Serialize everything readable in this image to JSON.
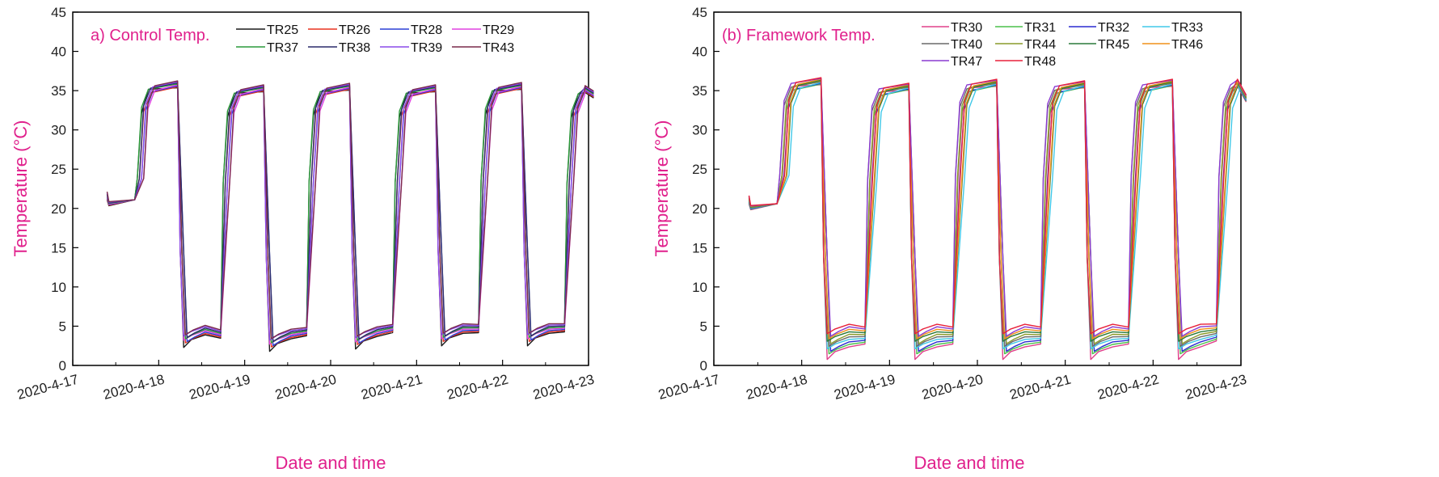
{
  "figure": {
    "accent_color": "#e0208c"
  },
  "chart_data": [
    {
      "type": "line",
      "title": "a) Control Temp.",
      "xlabel": "Date and time",
      "ylabel": "Temperature (°C)",
      "ylim": [
        0,
        45
      ],
      "yticks": [
        "0",
        "5",
        "10",
        "15",
        "20",
        "25",
        "30",
        "35",
        "40",
        "45"
      ],
      "xlim": [
        0,
        6
      ],
      "xticks": [
        "2020-4-17",
        "2020-4-18",
        "2020-4-19",
        "2020-4-20",
        "2020-4-21",
        "2020-4-22",
        "2020-4-23"
      ],
      "legend_position": "top-right",
      "series": [
        {
          "name": "TR25",
          "color": "#1a1a1a"
        },
        {
          "name": "TR26",
          "color": "#e8321e"
        },
        {
          "name": "TR28",
          "color": "#2a3fd6"
        },
        {
          "name": "TR29",
          "color": "#e040e0"
        },
        {
          "name": "TR37",
          "color": "#2a9a3a"
        },
        {
          "name": "TR38",
          "color": "#2a2a6a"
        },
        {
          "name": "TR39",
          "color": "#8a4ae8"
        },
        {
          "name": "TR43",
          "color": "#7a2a4a"
        }
      ],
      "cycles": [
        {
          "heat_start": 0.74,
          "cool_start": 1.24,
          "high": 35.8,
          "low": 4.5
        },
        {
          "heat_start": 1.74,
          "cool_start": 2.24,
          "high": 35.3,
          "low": 4.0
        },
        {
          "heat_start": 2.74,
          "cool_start": 3.24,
          "high": 35.5,
          "low": 4.3
        },
        {
          "heat_start": 3.74,
          "cool_start": 4.24,
          "high": 35.3,
          "low": 4.7
        },
        {
          "heat_start": 4.74,
          "cool_start": 5.24,
          "high": 35.6,
          "low": 4.7
        },
        {
          "heat_start": 5.74,
          "cool_start": 5.98,
          "high": 35.2,
          "low": 4.8
        }
      ],
      "start": {
        "x": 0.4,
        "y": 21.0
      },
      "end": {
        "x": 6.06,
        "y": 34.5
      }
    },
    {
      "type": "line",
      "title": "(b) Framework Temp.",
      "xlabel": "Date and time",
      "ylabel": "Temperature (°C)",
      "ylim": [
        0,
        45
      ],
      "yticks": [
        "0",
        "5",
        "10",
        "15",
        "20",
        "25",
        "30",
        "35",
        "40",
        "45"
      ],
      "xlim": [
        0,
        6
      ],
      "xticks": [
        "2020-4-17",
        "2020-4-18",
        "2020-4-19",
        "2020-4-20",
        "2020-4-21",
        "2020-4-22",
        "2020-4-23"
      ],
      "legend_position": "top-right",
      "series": [
        {
          "name": "TR30",
          "color": "#e0408a"
        },
        {
          "name": "TR31",
          "color": "#4ac04a"
        },
        {
          "name": "TR32",
          "color": "#2a2ad0"
        },
        {
          "name": "TR33",
          "color": "#40c8e8"
        },
        {
          "name": "TR40",
          "color": "#6a6a6a"
        },
        {
          "name": "TR44",
          "color": "#8a9a2a"
        },
        {
          "name": "TR45",
          "color": "#2a7a3a"
        },
        {
          "name": "TR46",
          "color": "#f0901a"
        },
        {
          "name": "TR47",
          "color": "#8a3ad0"
        },
        {
          "name": "TR48",
          "color": "#e8203a"
        }
      ],
      "cycles": [
        {
          "heat_start": 0.74,
          "cool_start": 1.24,
          "high": 36.2,
          "low": 3.8
        },
        {
          "heat_start": 1.74,
          "cool_start": 2.24,
          "high": 35.5,
          "low": 3.8
        },
        {
          "heat_start": 2.74,
          "cool_start": 3.24,
          "high": 36.0,
          "low": 3.8
        },
        {
          "heat_start": 3.74,
          "cool_start": 4.24,
          "high": 35.8,
          "low": 3.8
        },
        {
          "heat_start": 4.74,
          "cool_start": 5.24,
          "high": 36.0,
          "low": 3.8
        },
        {
          "heat_start": 5.74,
          "cool_start": 5.98,
          "high": 36.0,
          "low": 4.2
        }
      ],
      "start": {
        "x": 0.4,
        "y": 20.5
      },
      "end": {
        "x": 6.06,
        "y": 34.0
      }
    }
  ]
}
